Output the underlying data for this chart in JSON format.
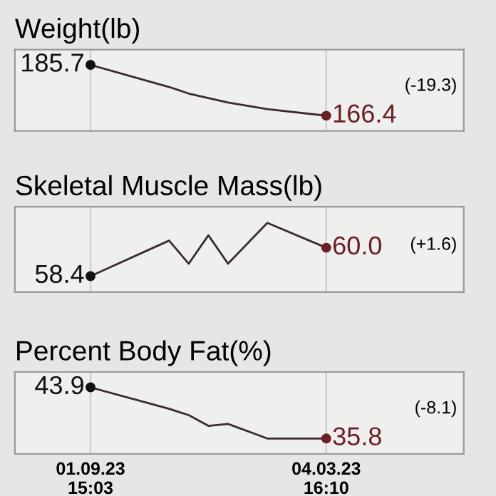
{
  "chart_data": [
    {
      "type": "line",
      "title": "Weight(lb)",
      "categories": [
        null,
        null,
        null,
        null,
        null,
        null,
        null,
        null,
        null,
        null,
        null,
        null,
        null
      ],
      "tick_labels": false,
      "grid": "x",
      "line_style": "solid",
      "series": [
        {
          "color": "#3b2b2b",
          "values": [
            185.7,
            null,
            null,
            null,
            177.3,
            174.8,
            173.1,
            171.4,
            null,
            168.9,
            null,
            null,
            166.4
          ],
          "colors": [
            "#111111",
            null,
            null,
            null,
            null,
            null,
            null,
            null,
            null,
            null,
            null,
            null,
            "#6b1f24"
          ],
          "value_labels": [
            "185.7",
            null,
            null,
            null,
            null,
            null,
            null,
            null,
            null,
            null,
            null,
            null,
            "166.4"
          ]
        }
      ],
      "annotations": [
        "(-19.3)"
      ]
    },
    {
      "type": "line",
      "title": "Skeletal Muscle Mass(lb)",
      "categories": [
        null,
        null,
        null,
        null,
        null,
        null,
        null,
        null,
        null,
        null,
        null,
        null,
        null
      ],
      "tick_labels": false,
      "grid": "x",
      "line_style": "solid",
      "series": [
        {
          "color": "#3b2b2b",
          "values": [
            58.4,
            null,
            null,
            null,
            60.4,
            59.1,
            60.7,
            59.1,
            null,
            61.4,
            null,
            null,
            60.0
          ],
          "colors": [
            "#111111",
            null,
            null,
            null,
            null,
            null,
            null,
            null,
            null,
            null,
            null,
            null,
            "#6b1f24"
          ],
          "value_labels": [
            "58.4",
            null,
            null,
            null,
            null,
            null,
            null,
            null,
            null,
            null,
            null,
            null,
            "60.0"
          ]
        }
      ],
      "annotations": [
        "(+1.6)"
      ]
    },
    {
      "type": "line",
      "title": "Percent Body Fat(%)",
      "categories": [
        "01.09.23\n15:03",
        null,
        null,
        null,
        null,
        null,
        null,
        null,
        null,
        null,
        null,
        null,
        "04.03.23\n16:10"
      ],
      "tick_labels": "x",
      "grid": "x",
      "line_style": "solid",
      "series": [
        {
          "color": "#3b2b2b",
          "values": [
            43.9,
            null,
            null,
            null,
            40.5,
            39.5,
            37.8,
            38.1,
            null,
            35.8,
            null,
            null,
            35.8
          ],
          "colors": [
            "#111111",
            null,
            null,
            null,
            null,
            null,
            null,
            null,
            null,
            null,
            null,
            null,
            "#6b1f24"
          ],
          "value_labels": [
            "43.9",
            null,
            null,
            null,
            null,
            null,
            null,
            null,
            null,
            null,
            null,
            null,
            "35.8"
          ]
        }
      ],
      "annotations": [
        "(-8.1)"
      ]
    }
  ]
}
